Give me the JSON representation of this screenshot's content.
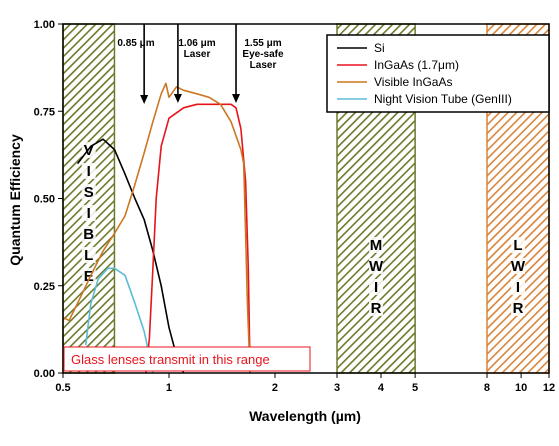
{
  "chart_data": {
    "type": "line",
    "title": "",
    "xlabel": "Wavelength (µm)",
    "ylabel": "Quantum Efficiency",
    "x_scale": "log",
    "xlim": [
      0.5,
      12
    ],
    "ylim": [
      0,
      1
    ],
    "x_ticks": [
      {
        "value": 0.5,
        "label": "0.5"
      },
      {
        "value": 1,
        "label": "1"
      },
      {
        "value": 2,
        "label": "2"
      },
      {
        "value": 3,
        "label": "3"
      },
      {
        "value": 4,
        "label": "4"
      },
      {
        "value": 5,
        "label": "5"
      },
      {
        "value": 8,
        "label": "8"
      },
      {
        "value": 10,
        "label": "10"
      },
      {
        "value": 12,
        "label": "12"
      }
    ],
    "y_ticks": [
      {
        "value": 0,
        "label": "0.00"
      },
      {
        "value": 0.25,
        "label": "0.25"
      },
      {
        "value": 0.5,
        "label": "0.50"
      },
      {
        "value": 0.75,
        "label": "0.75"
      },
      {
        "value": 1,
        "label": "1.00"
      }
    ],
    "grid": false,
    "legend_position": "top-right",
    "series": [
      {
        "name": "Si",
        "color": "#000000",
        "points": [
          [
            0.55,
            0.6
          ],
          [
            0.6,
            0.65
          ],
          [
            0.65,
            0.67
          ],
          [
            0.7,
            0.64
          ],
          [
            0.75,
            0.57
          ],
          [
            0.8,
            0.5
          ],
          [
            0.85,
            0.44
          ],
          [
            0.9,
            0.35
          ],
          [
            0.95,
            0.25
          ],
          [
            1.0,
            0.13
          ],
          [
            1.05,
            0.05
          ],
          [
            1.1,
            0.0
          ]
        ]
      },
      {
        "name": "InGaAs (1.7μm)",
        "color": "#e8141c",
        "points": [
          [
            0.86,
            0.0
          ],
          [
            0.88,
            0.1
          ],
          [
            0.9,
            0.3
          ],
          [
            0.92,
            0.5
          ],
          [
            0.95,
            0.65
          ],
          [
            1.0,
            0.73
          ],
          [
            1.1,
            0.76
          ],
          [
            1.2,
            0.77
          ],
          [
            1.3,
            0.77
          ],
          [
            1.4,
            0.77
          ],
          [
            1.5,
            0.77
          ],
          [
            1.55,
            0.76
          ],
          [
            1.6,
            0.7
          ],
          [
            1.65,
            0.55
          ],
          [
            1.68,
            0.3
          ],
          [
            1.7,
            0.0
          ]
        ]
      },
      {
        "name": "Visible InGaAs",
        "color": "#cc7722",
        "points": [
          [
            0.5,
            0.16
          ],
          [
            0.52,
            0.15
          ],
          [
            0.55,
            0.2
          ],
          [
            0.6,
            0.28
          ],
          [
            0.65,
            0.35
          ],
          [
            0.7,
            0.4
          ],
          [
            0.75,
            0.45
          ],
          [
            0.8,
            0.54
          ],
          [
            0.85,
            0.63
          ],
          [
            0.9,
            0.72
          ],
          [
            0.95,
            0.8
          ],
          [
            0.98,
            0.83
          ],
          [
            1.0,
            0.79
          ],
          [
            1.05,
            0.82
          ],
          [
            1.1,
            0.81
          ],
          [
            1.2,
            0.8
          ],
          [
            1.3,
            0.79
          ],
          [
            1.4,
            0.77
          ],
          [
            1.5,
            0.72
          ],
          [
            1.55,
            0.68
          ],
          [
            1.6,
            0.64
          ],
          [
            1.63,
            0.6
          ],
          [
            1.65,
            0.4
          ],
          [
            1.67,
            0.2
          ],
          [
            1.7,
            0.0
          ]
        ]
      },
      {
        "name": "Night Vision Tube  (GenIII)",
        "color": "#5bbcd6",
        "points": [
          [
            0.58,
            0.08
          ],
          [
            0.6,
            0.2
          ],
          [
            0.63,
            0.27
          ],
          [
            0.67,
            0.3
          ],
          [
            0.7,
            0.3
          ],
          [
            0.75,
            0.28
          ],
          [
            0.8,
            0.2
          ],
          [
            0.85,
            0.12
          ],
          [
            0.88,
            0.05
          ],
          [
            0.9,
            0.0
          ]
        ]
      }
    ],
    "bands": [
      {
        "name": "VISIBLE",
        "letters": [
          "V",
          "I",
          "S",
          "I",
          "B",
          "L",
          "E"
        ],
        "x_range": [
          0.5,
          0.7
        ],
        "color": "#6b7a2a"
      },
      {
        "name": "MWIR",
        "letters": [
          "M",
          "W",
          "I",
          "R"
        ],
        "x_range": [
          3,
          5
        ],
        "color": "#6b7a2a"
      },
      {
        "name": "LWIR",
        "letters": [
          "L",
          "W",
          "I",
          "R"
        ],
        "x_range": [
          8,
          12
        ],
        "color": "#d8843a"
      }
    ],
    "annotations": [
      {
        "lines": [
          "0.85 μm"
        ],
        "x": 0.85
      },
      {
        "lines": [
          "1.06 μm",
          "Laser"
        ],
        "x": 1.06
      },
      {
        "lines": [
          "1.55 μm",
          "Eye-safe",
          "Laser"
        ],
        "x": 1.55
      }
    ],
    "callout": "Glass lenses transmit in this range"
  }
}
